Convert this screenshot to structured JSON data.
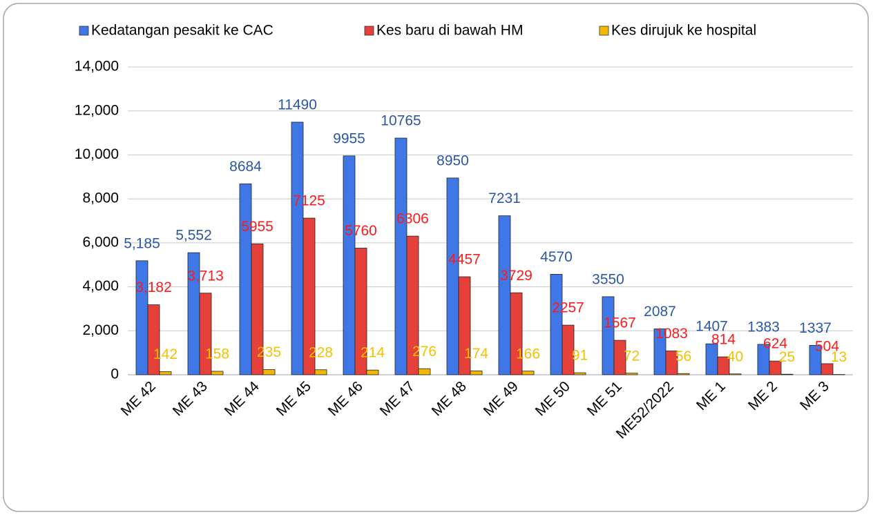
{
  "chart_data": {
    "type": "bar",
    "categories": [
      "ME 42",
      "ME 43",
      "ME 44",
      "ME 45",
      "ME 46",
      "ME 47",
      "ME 48",
      "ME 49",
      "ME 50",
      "ME 51",
      "ME52/2022",
      "ME 1",
      "ME 2",
      "ME 3"
    ],
    "series": [
      {
        "name": "Kedatangan pesakit ke CAC",
        "color": "#3f78e6",
        "label_color": "#2c56a6",
        "values": [
          5185,
          5552,
          8684,
          11490,
          9955,
          10765,
          8950,
          7231,
          4570,
          3550,
          2087,
          1407,
          1383,
          1337
        ],
        "value_labels": [
          "5,185",
          "5,552",
          "8684",
          "11490",
          "9955",
          "10765",
          "8950",
          "7231",
          "4570",
          "3550",
          "2087",
          "1407",
          "1383",
          "1337"
        ]
      },
      {
        "name": "Kes baru di bawah HM",
        "color": "#e5403a",
        "label_color": "#ff1a1a",
        "values": [
          3182,
          3713,
          5955,
          7125,
          5760,
          6306,
          4457,
          3729,
          2257,
          1567,
          1083,
          814,
          624,
          504
        ],
        "value_labels": [
          "3,182",
          "3,713",
          "5955",
          "7125",
          "5760",
          "6306",
          "4457",
          "3729",
          "2257",
          "1567",
          "1083",
          "814",
          "624",
          "504"
        ]
      },
      {
        "name": "Kes dirujuk ke hospital",
        "color": "#f2b705",
        "label_color": "#f5c000",
        "values": [
          142,
          158,
          235,
          228,
          214,
          276,
          174,
          166,
          91,
          72,
          56,
          40,
          25,
          13
        ]
      }
    ],
    "ylim": [
      0,
      14000
    ],
    "yticks": [
      0,
      {
        "value": 2000,
        "label": "2,000"
      },
      {
        "value": 4000,
        "label": "4,000"
      },
      {
        "value": 6000,
        "label": "6,000"
      },
      {
        "value": 8000,
        "label": "8,000"
      },
      {
        "value": 10000,
        "label": "10,000"
      },
      {
        "value": 12000,
        "label": "12,000"
      },
      {
        "value": 14000,
        "label": "14,000"
      }
    ],
    "grid": true,
    "legend": "top"
  }
}
